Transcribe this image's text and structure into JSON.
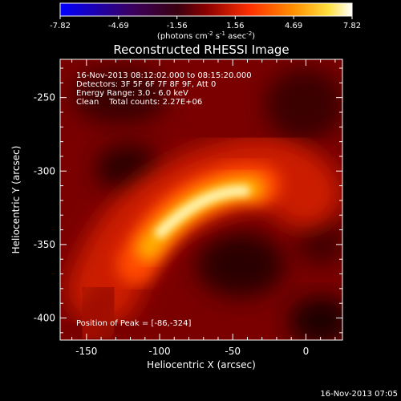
{
  "chart_data": {
    "type": "heatmap",
    "title": "Reconstructed RHESSI Image",
    "xlabel": "Heliocentric X (arcsec)",
    "ylabel": "Heliocentric Y (arcsec)",
    "xlim": [
      -168,
      25
    ],
    "ylim": [
      -415,
      -224
    ],
    "xticks": [
      -150,
      -100,
      -50,
      0
    ],
    "yticks": [
      -250,
      -300,
      -350,
      -400
    ],
    "colorbar": {
      "ticks": [
        "-7.82",
        "-4.69",
        "-1.56",
        "1.56",
        "4.69",
        "7.82"
      ],
      "units_pre": "(photons cm",
      "units_sup1": "-2",
      "units_mid": " s",
      "units_sup2": "-1",
      "units_mid2": " asec",
      "units_sup3": "-2",
      "units_post": ")",
      "range": [
        -7.82,
        7.82
      ]
    },
    "annotations": [
      "16-Nov-2013 08:12:02.000 to 08:15:20.000",
      "Detectors: 3F 5F 6F 7F 8F 9F, Att 0",
      "Energy Range: 3.0 - 6.0 keV",
      "Clean    Total counts: 2.27E+06"
    ],
    "peak_text": "Position of Peak = [-86,-324]",
    "peak": [
      -86,
      -324
    ]
  },
  "footer_timestamp": "16-Nov-2013 07:05"
}
